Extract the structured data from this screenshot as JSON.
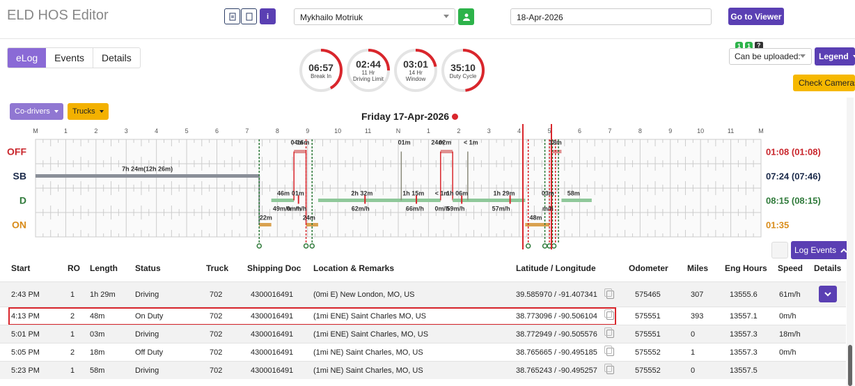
{
  "app": {
    "title": "ELD HOS Editor"
  },
  "toolbar": {
    "driver_name": "Mykhailo Motriuk",
    "date": "18-Apr-2026",
    "go_to_viewer": "Go to Viewer",
    "info_label": "i"
  },
  "tabs": [
    {
      "label": "eLog",
      "active": true
    },
    {
      "label": "Events",
      "active": false
    },
    {
      "label": "Details",
      "active": false
    }
  ],
  "gauges": [
    {
      "value": "06:57",
      "label": "Break In",
      "fraction": 0.42
    },
    {
      "value": "02:44",
      "label": "11 Hr\nDriving Limit",
      "fraction": 0.25
    },
    {
      "value": "03:01",
      "label": "14 Hr\nWindow",
      "fraction": 0.22
    },
    {
      "value": "35:10",
      "label": "Duty Cycle",
      "fraction": 0.48
    }
  ],
  "upload": {
    "label": "Can be uploaded:",
    "badges": [
      "1",
      "1",
      "?"
    ]
  },
  "legend_button": "Legend",
  "check_cameras": "Check Cameras",
  "codrivers": "Co-drivers",
  "trucks": "Trucks",
  "log_title": "Friday 17-Apr-2026",
  "hour_labels": [
    "M",
    "1",
    "2",
    "3",
    "4",
    "5",
    "6",
    "7",
    "8",
    "9",
    "10",
    "11",
    "N",
    "1",
    "2",
    "3",
    "4",
    "5",
    "6",
    "7",
    "8",
    "9",
    "10",
    "11",
    "M"
  ],
  "status_rows": [
    {
      "label": "OFF",
      "color": "#c9262c",
      "total": "01:08 (01:08)"
    },
    {
      "label": "SB",
      "color": "#1b2a4a",
      "total": "07:24 (07:46)"
    },
    {
      "label": "D",
      "color": "#2f7a3a",
      "total": "08:15 (08:15)"
    },
    {
      "label": "ON",
      "color": "#d98c1a",
      "total": "01:35"
    }
  ],
  "graph_labels": [
    {
      "text": "7h 24m(12h 26m)",
      "hour": 3.7,
      "row": 1
    },
    {
      "text": "46m",
      "hour": 8.2,
      "row": 2
    },
    {
      "text": "01m",
      "hour": 8.68,
      "row": 2
    },
    {
      "text": "49m/h",
      "hour": 8.15,
      "row": 2.5
    },
    {
      "text": "0m/h",
      "hour": 8.55,
      "row": 2.5
    },
    {
      "text": "m/h",
      "hour": 8.78,
      "row": 2.5
    },
    {
      "text": "04m",
      "hour": 8.65,
      "row": 0
    },
    {
      "text": "16m",
      "hour": 8.85,
      "row": 0
    },
    {
      "text": "22m",
      "hour": 7.62,
      "row": 3
    },
    {
      "text": "24m",
      "hour": 9.05,
      "row": 3
    },
    {
      "text": "2h 32m",
      "hour": 10.8,
      "row": 2
    },
    {
      "text": "62m/h",
      "hour": 10.75,
      "row": 2.5
    },
    {
      "text": "01m",
      "hour": 12.2,
      "row": 0
    },
    {
      "text": "1h 15m",
      "hour": 12.5,
      "row": 2
    },
    {
      "text": "66m/h",
      "hour": 12.55,
      "row": 2.5
    },
    {
      "text": "24m",
      "hour": 13.3,
      "row": 0
    },
    {
      "text": "02m",
      "hour": 13.55,
      "row": 0
    },
    {
      "text": "< 1m",
      "hour": 14.4,
      "row": 0
    },
    {
      "text": "< 1m",
      "hour": 13.45,
      "row": 2
    },
    {
      "text": "1h 06m",
      "hour": 13.95,
      "row": 2
    },
    {
      "text": "0m/h",
      "hour": 13.45,
      "row": 2.5
    },
    {
      "text": "59m/h",
      "hour": 13.9,
      "row": 2.5
    },
    {
      "text": "1h 29m",
      "hour": 15.5,
      "row": 2
    },
    {
      "text": "57m/h",
      "hour": 15.4,
      "row": 2.5
    },
    {
      "text": "48m",
      "hour": 16.55,
      "row": 3
    },
    {
      "text": "58m",
      "hour": 17.8,
      "row": 2
    },
    {
      "text": "03m",
      "hour": 16.95,
      "row": 2
    },
    {
      "text": "18m",
      "hour": 17.2,
      "row": 0
    },
    {
      "text": "m/h",
      "hour": 16.95,
      "row": 2.5
    }
  ],
  "log_events_button": "Log Events",
  "table": {
    "headers": [
      "Start",
      "RO",
      "Length",
      "Status",
      "Truck",
      "Shipping Doc",
      "Location & Remarks",
      "Latitude / Longitude",
      "Odometer",
      "Miles",
      "Eng Hours",
      "Speed",
      "Details"
    ],
    "rows": [
      {
        "start": "2:43 PM",
        "ro": "1",
        "length": "1h 29m",
        "status": "Driving",
        "truck": "702",
        "doc": "4300016491",
        "location": "(0mi E) New London, MO, US",
        "latlon": "39.585970 / -91.407341",
        "odometer": "575465",
        "miles": "307",
        "eng": "13555.6",
        "speed": "61m/h",
        "expanded": true
      },
      {
        "start": "4:13 PM",
        "ro": "2",
        "length": "48m",
        "status": "On Duty",
        "truck": "702",
        "doc": "4300016491",
        "location": "(1mi ENE) Saint Charles MO, US",
        "latlon": "38.773096 / -90.506104",
        "odometer": "575551",
        "miles": "393",
        "eng": "13557.1",
        "speed": "0m/h",
        "highlight": true
      },
      {
        "start": "5:01 PM",
        "ro": "1",
        "length": "03m",
        "status": "Driving",
        "truck": "702",
        "doc": "4300016491",
        "location": "(1mi ENE) Saint Charles, MO, US",
        "latlon": "38.772949 / -90.505576",
        "odometer": "575551",
        "miles": "0",
        "eng": "13557.3",
        "speed": "18m/h"
      },
      {
        "start": "5:05 PM",
        "ro": "2",
        "length": "18m",
        "status": "Off Duty",
        "truck": "702",
        "doc": "4300016491",
        "location": "(1mi NE) Saint Charles, MO, US",
        "latlon": "38.765665 / -90.495185",
        "odometer": "575552",
        "miles": "1",
        "eng": "13557.3",
        "speed": "0m/h"
      },
      {
        "start": "5:23 PM",
        "ro": "1",
        "length": "58m",
        "status": "Driving",
        "truck": "702",
        "doc": "4300016491",
        "location": "(1mi NE) Saint Charles, MO, US",
        "latlon": "38.765243 / -90.495257",
        "odometer": "575552",
        "miles": "0",
        "eng": "13557.5",
        "speed": ""
      }
    ]
  }
}
